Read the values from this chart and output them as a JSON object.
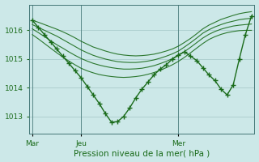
{
  "title": "",
  "xlabel": "Pression niveau de la mer( hPa )",
  "ylabel": "",
  "bg_color": "#cce8e8",
  "grid_color": "#aacccc",
  "line_color": "#1a6b1a",
  "tick_label_color": "#1a6b1a",
  "axis_label_color": "#1a6b1a",
  "marker": "+",
  "markersize": 4,
  "ylim": [
    1012.4,
    1016.9
  ],
  "yticks": [
    1013,
    1014,
    1015,
    1016
  ],
  "xtick_positions": [
    0,
    8,
    24
  ],
  "xtick_labels": [
    "Mar",
    "Jeu",
    "Mer"
  ],
  "vline_positions": [
    0,
    8,
    24
  ],
  "n_points": 37,
  "main_line": [
    1016.35,
    1016.1,
    1015.85,
    1015.6,
    1015.35,
    1015.1,
    1014.85,
    1014.6,
    1014.35,
    1014.05,
    1013.75,
    1013.45,
    1013.1,
    1012.8,
    1012.82,
    1013.0,
    1013.3,
    1013.65,
    1013.95,
    1014.2,
    1014.45,
    1014.65,
    1014.8,
    1015.0,
    1015.15,
    1015.25,
    1015.1,
    1014.95,
    1014.7,
    1014.45,
    1014.25,
    1013.95,
    1013.75,
    1014.1,
    1015.0,
    1015.85,
    1016.5
  ],
  "ensemble_lines": [
    [
      1016.35,
      1016.28,
      1016.2,
      1016.12,
      1016.04,
      1015.95,
      1015.85,
      1015.74,
      1015.62,
      1015.52,
      1015.42,
      1015.35,
      1015.28,
      1015.22,
      1015.17,
      1015.14,
      1015.12,
      1015.11,
      1015.12,
      1015.14,
      1015.17,
      1015.22,
      1015.28,
      1015.35,
      1015.45,
      1015.58,
      1015.72,
      1015.88,
      1016.05,
      1016.18,
      1016.28,
      1016.38,
      1016.45,
      1016.52,
      1016.58,
      1016.62,
      1016.65
    ],
    [
      1016.2,
      1016.1,
      1016.0,
      1015.9,
      1015.8,
      1015.68,
      1015.56,
      1015.44,
      1015.32,
      1015.22,
      1015.13,
      1015.06,
      1015.0,
      1014.95,
      1014.91,
      1014.89,
      1014.88,
      1014.88,
      1014.9,
      1014.93,
      1014.97,
      1015.03,
      1015.1,
      1015.18,
      1015.28,
      1015.42,
      1015.57,
      1015.73,
      1015.9,
      1016.02,
      1016.12,
      1016.2,
      1016.27,
      1016.32,
      1016.37,
      1016.4,
      1016.42
    ],
    [
      1016.05,
      1015.92,
      1015.78,
      1015.64,
      1015.5,
      1015.38,
      1015.25,
      1015.13,
      1015.02,
      1014.93,
      1014.85,
      1014.79,
      1014.74,
      1014.7,
      1014.67,
      1014.65,
      1014.65,
      1014.66,
      1014.68,
      1014.72,
      1014.77,
      1014.84,
      1014.92,
      1015.01,
      1015.12,
      1015.26,
      1015.41,
      1015.57,
      1015.73,
      1015.86,
      1015.96,
      1016.04,
      1016.1,
      1016.15,
      1016.18,
      1016.2,
      1016.22
    ],
    [
      1015.85,
      1015.7,
      1015.54,
      1015.38,
      1015.22,
      1015.07,
      1014.93,
      1014.8,
      1014.68,
      1014.59,
      1014.52,
      1014.46,
      1014.42,
      1014.39,
      1014.37,
      1014.36,
      1014.37,
      1014.39,
      1014.42,
      1014.47,
      1014.53,
      1014.61,
      1014.7,
      1014.8,
      1014.92,
      1015.06,
      1015.22,
      1015.38,
      1015.54,
      1015.68,
      1015.78,
      1015.86,
      1015.92,
      1015.96,
      1015.99,
      1016.0,
      1016.0
    ]
  ]
}
